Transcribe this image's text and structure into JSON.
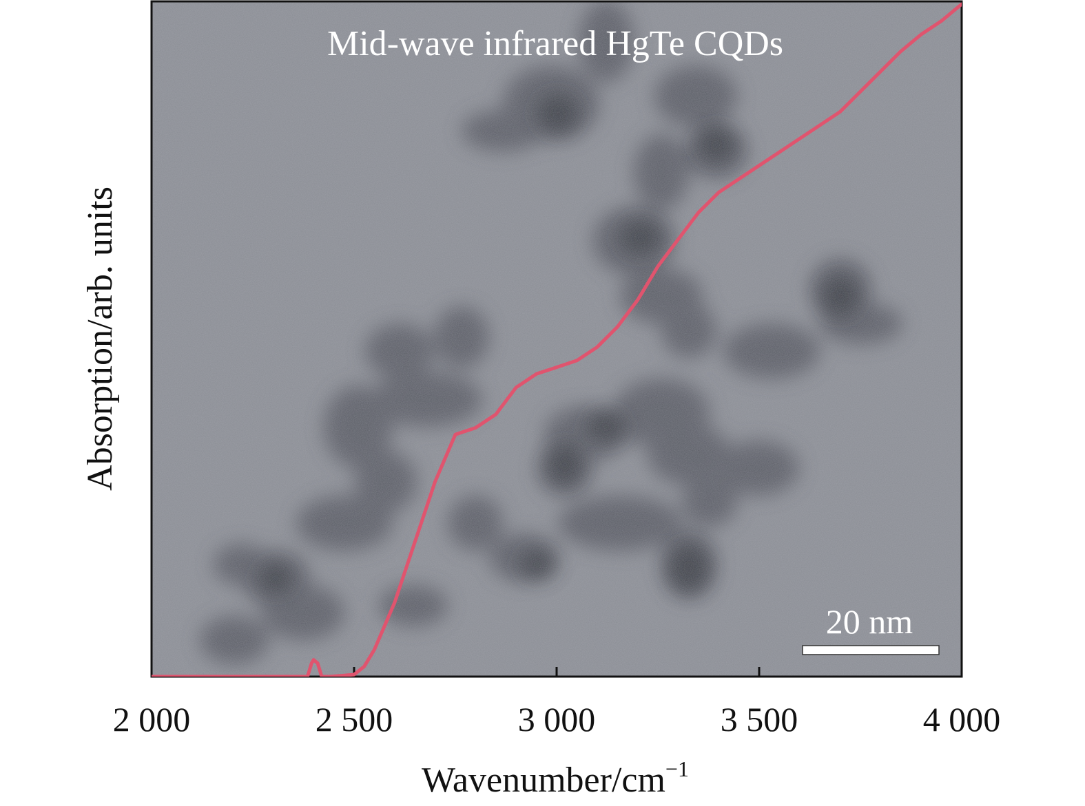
{
  "chart_data": {
    "type": "line",
    "title": "Mid-wave infrared HgTe CQDs",
    "xlabel": "Wavenumber/cm",
    "xlabel_superscript": "−1",
    "ylabel": "Absorption/arb. units",
    "xlim": [
      2000,
      4000
    ],
    "ylim": [
      0,
      1
    ],
    "xticks": [
      2000,
      2500,
      3000,
      3500,
      4000
    ],
    "xtick_labels": [
      "2 000",
      "2 500",
      "3 000",
      "3 500",
      "4 000"
    ],
    "grid": false,
    "background": "TEM micrograph of HgTe colloidal quantum dots",
    "scale_bar_label": "20 nm",
    "series": [
      {
        "color": "#e0546e",
        "x": [
          2000,
          2250,
          2385,
          2395,
          2400,
          2410,
          2420,
          2440,
          2500,
          2525,
          2550,
          2600,
          2650,
          2700,
          2750,
          2800,
          2850,
          2875,
          2900,
          2950,
          3000,
          3050,
          3100,
          3150,
          3200,
          3250,
          3300,
          3350,
          3400,
          3500,
          3600,
          3700,
          3750,
          3800,
          3850,
          3900,
          3950,
          4000
        ],
        "y": [
          0.0,
          0.0,
          0.0,
          0.02,
          0.025,
          0.02,
          0.0,
          0.0,
          0.003,
          0.015,
          0.04,
          0.11,
          0.2,
          0.29,
          0.36,
          0.37,
          0.39,
          0.41,
          0.43,
          0.45,
          0.46,
          0.47,
          0.49,
          0.52,
          0.56,
          0.61,
          0.65,
          0.69,
          0.72,
          0.76,
          0.8,
          0.84,
          0.87,
          0.9,
          0.93,
          0.955,
          0.975,
          1.0
        ]
      }
    ]
  }
}
